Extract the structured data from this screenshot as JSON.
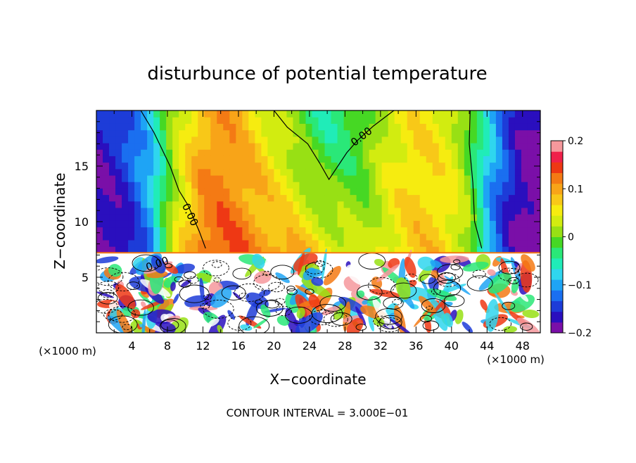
{
  "chart_data": {
    "type": "heatmap",
    "title": "disturbunce of potential temperature",
    "xlabel": "X−coordinate",
    "ylabel": "Z−coordinate",
    "x_unit": "(×1000 m)",
    "z_unit": "(×1000 m)",
    "footer": "CONTOUR INTERVAL = 3.000E−01",
    "xlim": [
      0,
      50
    ],
    "ylim": [
      0,
      20
    ],
    "x_ticks": [
      4,
      8,
      12,
      16,
      20,
      24,
      28,
      32,
      36,
      40,
      44,
      48
    ],
    "x_tick_labels": [
      "4",
      "8",
      "12",
      "16",
      "20",
      "24",
      "28",
      "32",
      "36",
      "40",
      "44",
      "48"
    ],
    "y_ticks": [
      5,
      10,
      15
    ],
    "y_tick_labels": [
      "5",
      "10",
      "15"
    ],
    "colorbar": {
      "range": [
        -0.2,
        0.2
      ],
      "ticks": [
        0.2,
        0.1,
        0,
        -0.1,
        -0.2
      ],
      "tick_labels": [
        "0.2",
        "0.1",
        "0",
        "−0.1",
        "−0.2"
      ],
      "colors": [
        "#7a0fa8",
        "#2a0fbe",
        "#1d3cd8",
        "#1a6ff0",
        "#1ea4f5",
        "#2fd6ee",
        "#20ecb8",
        "#2ae878",
        "#46d824",
        "#98e014",
        "#d2ec10",
        "#f6ec10",
        "#f8c818",
        "#f8a418",
        "#f47a14",
        "#ee3814",
        "#f0204a",
        "#f6989c"
      ]
    },
    "contour_labels": [
      {
        "text": "0.00",
        "x": 10.2,
        "z": 10.5
      },
      {
        "text": "0.00",
        "x": 30.1,
        "z": 17.4
      },
      {
        "text": "0.00",
        "x": 7.0,
        "z": 5.9
      }
    ],
    "zero_contours": [
      {
        "name": "left",
        "points": [
          [
            5,
            20
          ],
          [
            6.5,
            18
          ],
          [
            7.7,
            16
          ],
          [
            8.3,
            15
          ],
          [
            9.3,
            12.8
          ],
          [
            10.3,
            11.5
          ],
          [
            11.6,
            9.1
          ],
          [
            12.3,
            7.6
          ]
        ]
      },
      {
        "name": "center",
        "points": [
          [
            20,
            20
          ],
          [
            21.5,
            18.5
          ],
          [
            23.8,
            17
          ],
          [
            25.2,
            15.2
          ],
          [
            26.2,
            13.8
          ],
          [
            27.2,
            15
          ],
          [
            28.2,
            16.2
          ],
          [
            29.4,
            17.3
          ],
          [
            31.2,
            18.6
          ],
          [
            33.5,
            20
          ]
        ]
      },
      {
        "name": "right",
        "points": [
          [
            42.1,
            20
          ],
          [
            42,
            17
          ],
          [
            42.4,
            13.5
          ],
          [
            42.6,
            10
          ],
          [
            43.4,
            7.6
          ]
        ]
      }
    ],
    "upper_field": {
      "note": "stratified layer z > 7.2 km, value vs x (km)",
      "x": [
        0,
        3,
        6,
        9,
        12,
        14,
        16,
        18,
        20,
        22,
        24,
        26,
        28,
        30,
        32,
        34,
        36,
        38,
        40,
        42,
        44,
        46,
        48,
        50
      ],
      "top_values": [
        -0.16,
        -0.14,
        -0.08,
        0.02,
        0.09,
        0.1,
        0.09,
        0.06,
        0.03,
        0.0,
        -0.03,
        -0.05,
        -0.04,
        -0.02,
        0.02,
        0.05,
        0.06,
        0.05,
        0.04,
        -0.01,
        -0.07,
        -0.13,
        -0.17,
        -0.19
      ],
      "bottom_values": [
        -0.2,
        -0.18,
        -0.12,
        0.05,
        0.13,
        0.14,
        0.13,
        0.12,
        0.11,
        0.1,
        0.08,
        0.06,
        0.04,
        0.02,
        0.04,
        0.06,
        0.08,
        0.08,
        0.06,
        0.02,
        -0.1,
        -0.16,
        -0.2,
        -0.2
      ]
    },
    "interface_z": 7.2
  }
}
